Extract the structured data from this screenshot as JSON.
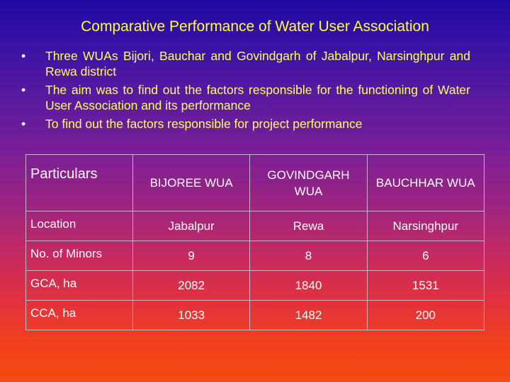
{
  "slide": {
    "title": "Comparative Performance of Water User Association",
    "bullet_marker": "•",
    "bullets": [
      "Three WUAs Bijori, Bauchar and Govindgarh of Jabalpur, Narsinghpur and Rewa district",
      "The aim was to find out the factors responsible for the functioning of Water User Association and its performance",
      "To find out the factors responsible for project performance"
    ]
  },
  "table": {
    "headers": [
      "Particulars",
      "BIJOREE WUA",
      "GOVINDGARH WUA",
      "BAUCHHAR WUA"
    ],
    "rows": [
      [
        "Location",
        "Jabalpur",
        "Rewa",
        "Narsinghpur"
      ],
      [
        "No. of Minors",
        "9",
        "8",
        "6"
      ],
      [
        "GCA, ha",
        "2082",
        "1840",
        "1531"
      ],
      [
        "CCA, ha",
        "1033",
        "1482",
        "200"
      ]
    ]
  },
  "colors": {
    "title": "#ffff33",
    "bullet_text": "#ffff66",
    "table_text": "#ffffff",
    "table_border": "#c9b3c9"
  }
}
